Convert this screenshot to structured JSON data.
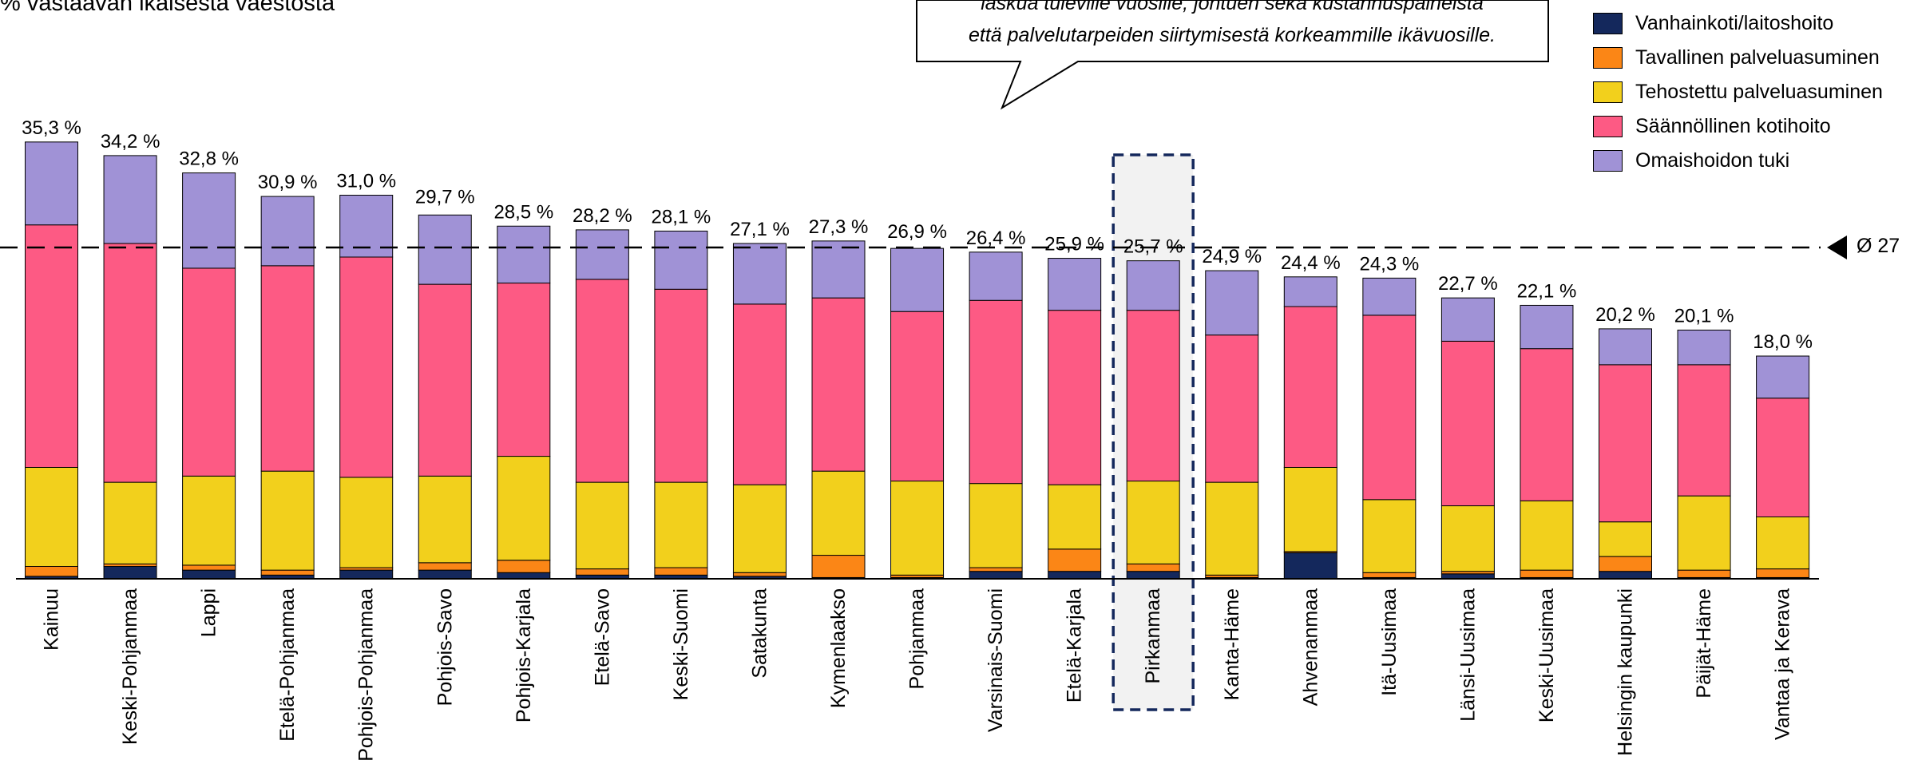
{
  "subtitle": "% vastaavan ikäisestä väestöstä",
  "callout": {
    "line1": "laskua tuleville vuosille, johtuen sekä kustannuspaineista",
    "line2": "että palvelutarpeiden siirtymisestä korkeammille ikävuosille."
  },
  "average_label": "Ø 27",
  "chart_data": {
    "type": "bar",
    "stacked": true,
    "categories": [
      "Kainuu",
      "Keski-Pohjanmaa",
      "Lappi",
      "Etelä-Pohjanmaa",
      "Pohjois-Pohjanmaa",
      "Pohjois-Savo",
      "Pohjois-Karjala",
      "Etelä-Savo",
      "Keski-Suomi",
      "Satakunta",
      "Kymenlaakso",
      "Pohjanmaa",
      "Varsinais-Suomi",
      "Etelä-Karjala",
      "Pirkanmaa",
      "Kanta-Häme",
      "Ahvenanmaa",
      "Itä-Uusimaa",
      "Länsi-Uusimaa",
      "Keski-Uusimaa",
      "Helsingin kaupunki",
      "Päijät-Häme",
      "Vantaa ja Kerava"
    ],
    "totals": [
      35.3,
      34.2,
      32.8,
      30.9,
      31.0,
      29.7,
      28.5,
      28.2,
      28.1,
      27.1,
      27.3,
      26.9,
      26.4,
      25.9,
      25.7,
      24.9,
      24.4,
      24.3,
      22.7,
      22.1,
      20.2,
      20.1,
      18.0
    ],
    "total_labels": [
      "35,3 %",
      "34,2 %",
      "32,8 %",
      "30,9 %",
      "31,0 %",
      "29,7 %",
      "28,5 %",
      "28,2 %",
      "28,1 %",
      "27,1 %",
      "27,3 %",
      "26,9 %",
      "26,4 %",
      "25,9 %",
      "25,7 %",
      "24,9 %",
      "24,4 %",
      "24,3 %",
      "22,7 %",
      "22,1 %",
      "20,2 %",
      "20,1 %",
      "18,0 %"
    ],
    "series": [
      {
        "name": "Vanhainkoti/laitoshoito",
        "color": "#14285c",
        "values": [
          0.2,
          1.0,
          0.7,
          0.3,
          0.7,
          0.7,
          0.5,
          0.3,
          0.3,
          0.2,
          0.1,
          0.1,
          0.6,
          0.6,
          0.6,
          0.1,
          2.1,
          0.1,
          0.4,
          0.1,
          0.6,
          0.1,
          0.1
        ]
      },
      {
        "name": "Tavallinen palveluasuminen",
        "color": "#fb8616",
        "values": [
          0.8,
          0.2,
          0.4,
          0.4,
          0.2,
          0.6,
          1.0,
          0.5,
          0.6,
          0.3,
          1.8,
          0.2,
          0.3,
          1.8,
          0.6,
          0.2,
          0.1,
          0.4,
          0.2,
          0.6,
          1.2,
          0.6,
          0.7
        ]
      },
      {
        "name": "Tehostettu palveluasuminen",
        "color": "#f2d01c",
        "values": [
          8.0,
          6.6,
          7.2,
          8.0,
          7.3,
          7.0,
          8.4,
          7.0,
          6.9,
          7.1,
          6.8,
          7.6,
          6.8,
          5.2,
          6.7,
          7.5,
          6.8,
          5.9,
          5.3,
          5.6,
          2.8,
          6.0,
          4.2
        ]
      },
      {
        "name": "Säännöllinen kotihoito",
        "color": "#fd5a84",
        "values": [
          19.6,
          19.3,
          16.8,
          16.6,
          17.8,
          15.5,
          14.0,
          16.4,
          15.6,
          14.6,
          14.0,
          13.7,
          14.8,
          14.1,
          13.8,
          11.9,
          13.0,
          14.9,
          13.3,
          12.3,
          12.7,
          10.6,
          9.6
        ]
      },
      {
        "name": "Omaishoidon tuki",
        "color": "#a092d6",
        "values": [
          6.7,
          7.1,
          7.7,
          5.6,
          5.0,
          5.6,
          4.6,
          4.0,
          4.7,
          4.9,
          4.6,
          5.1,
          3.9,
          4.2,
          4.0,
          5.2,
          2.4,
          3.0,
          3.5,
          3.5,
          2.9,
          2.8,
          3.4
        ]
      }
    ],
    "average": 27,
    "highlight": "Pirkanmaa",
    "ylim": [
      0,
      36.5
    ]
  }
}
